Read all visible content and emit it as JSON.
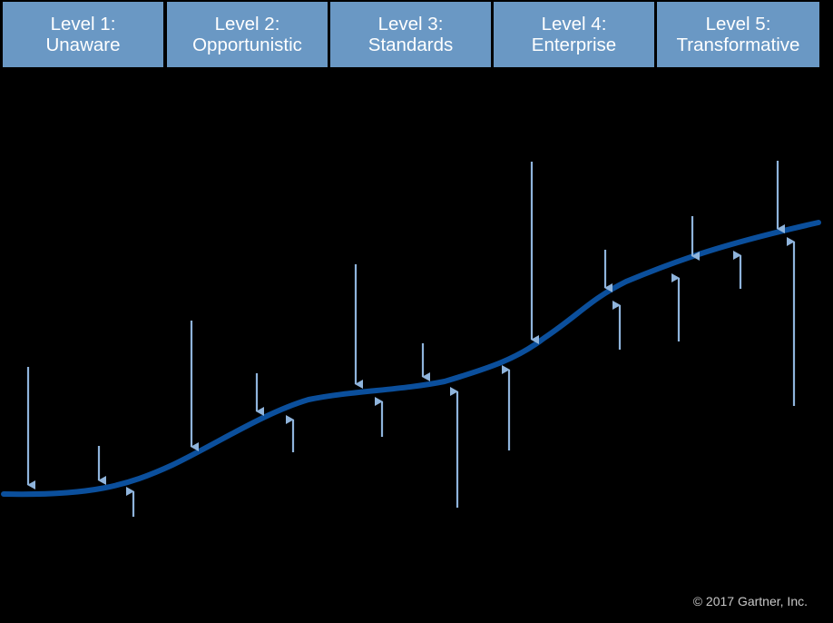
{
  "levels": [
    {
      "number": "Level 1:",
      "name": "Unaware"
    },
    {
      "number": "Level 2:",
      "name": "Opportunistic"
    },
    {
      "number": "Level 3:",
      "name": "Standards"
    },
    {
      "number": "Level 4:",
      "name": "Enterprise"
    },
    {
      "number": "Level 5:",
      "name": "Transformative"
    }
  ],
  "arrows": {
    "down_count": 10,
    "up_count": 10
  },
  "colors": {
    "background": "#000000",
    "level_box": "#6a98c4",
    "level_text": "#ffffff",
    "curve": "#0b4f9c",
    "arrows": "#8fb4dc",
    "copyright_text": "#c8c8c8"
  },
  "copyright": "© 2017 Gartner, Inc."
}
